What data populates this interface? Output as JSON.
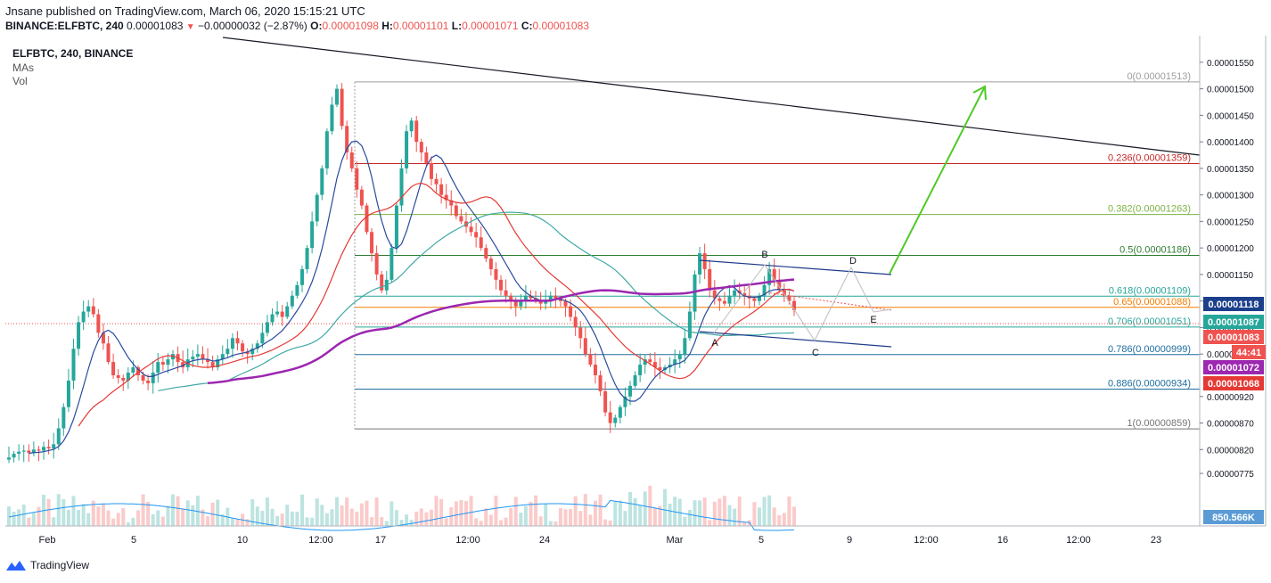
{
  "header": {
    "published": "Jnsane published on TradingView.com, March 06, 2020 15:15:21 UTC",
    "symbol_line": "BINANCE:ELFBTC, 240",
    "last": "0.00001083",
    "change": "−0.00000032 (−2.87%)",
    "o_label": "O:",
    "o": "0.00001098",
    "h_label": "H:",
    "h": "0.00001101",
    "l_label": "L:",
    "l": "0.00001071",
    "c_label": "C:",
    "c": "0.00001083"
  },
  "legend": {
    "symbol": "ELFBTC, 240, BINANCE",
    "mas": "MAs",
    "vol": "Vol"
  },
  "footer": {
    "brand": "TradingView"
  },
  "colors": {
    "up": "#26a69a",
    "down": "#ef5350",
    "ma_fast": "#2a4a9e",
    "ma_mid": "#e53935",
    "ma_slow": "#3fa9a5",
    "ma_long": "#9c27b0",
    "arrow": "#4fc928"
  },
  "chart_data": {
    "type": "candlestick",
    "y_axis": {
      "ticks": [
        "0.00001550",
        "0.00001500",
        "0.00001450",
        "0.00001400",
        "0.00001350",
        "0.00001300",
        "0.00001250",
        "0.00001200",
        "0.00001150",
        "0.00001100",
        "0.00001050",
        "0.00001000",
        "0.00000920",
        "0.00000870",
        "0.00000820",
        "0.00000775"
      ],
      "tick_values": [
        1550,
        1500,
        1450,
        1400,
        1350,
        1300,
        1250,
        1200,
        1150,
        1100,
        1050,
        1000,
        920,
        870,
        820,
        775
      ],
      "scale_note": "prices in satoshi x1e-8",
      "range": [
        760,
        1580
      ]
    },
    "x_axis": {
      "ticks": [
        "Feb",
        "5",
        "10",
        "12:00",
        "17",
        "12:00",
        "24",
        "Mar",
        "5",
        "9",
        "12:00",
        "16",
        "12:00",
        "23"
      ]
    },
    "fibonacci": [
      {
        "label": "0(0.00001513)",
        "value": 1513,
        "color": "#9e9e9e"
      },
      {
        "label": "0.236(0.00001359)",
        "value": 1359,
        "color": "#c62828"
      },
      {
        "label": "0.382(0.00001263)",
        "value": 1263,
        "color": "#7cb342"
      },
      {
        "label": "0.5(0.00001186)",
        "value": 1186,
        "color": "#2e7d32"
      },
      {
        "label": "0.618(0.00001109)",
        "value": 1109,
        "color": "#26a69a"
      },
      {
        "label": "0.65(0.00001088)",
        "value": 1088,
        "color": "#f57c00"
      },
      {
        "label": "0.706(0.00001051)",
        "value": 1051,
        "color": "#26a69a"
      },
      {
        "label": "0.786(0.00000999)",
        "value": 999,
        "color": "#1e6e9e"
      },
      {
        "label": "0.886(0.00000934)",
        "value": 934,
        "color": "#1e6e9e"
      },
      {
        "label": "1(0.00000859)",
        "value": 859,
        "color": "#757575"
      }
    ],
    "price_labels": [
      {
        "text": "0.00001118",
        "bg": "#1b3f8b"
      },
      {
        "text": "0.00001087",
        "bg": "#26a69a"
      },
      {
        "text": "0.00001083",
        "bg": "#ef5350"
      },
      {
        "text": "44:41",
        "bg": "#ef5350"
      },
      {
        "text": "0.00001072",
        "bg": "#9c27b0"
      },
      {
        "text": "0.00001068",
        "bg": "#e53935"
      },
      {
        "text": "850.566K",
        "bg": "#5b9bd5"
      }
    ],
    "pattern_labels": [
      "A",
      "B",
      "C",
      "D",
      "E"
    ],
    "closes": [
      805,
      812,
      816,
      818,
      814,
      820,
      818,
      825,
      822,
      830,
      860,
      900,
      950,
      1010,
      1060,
      1080,
      1090,
      1075,
      1040,
      1020,
      985,
      960,
      955,
      950,
      965,
      975,
      960,
      950,
      945,
      965,
      985,
      980,
      990,
      1000,
      985,
      975,
      990,
      995,
      1000,
      990,
      985,
      975,
      990,
      1000,
      1010,
      1030,
      1020,
      1005,
      1000,
      1010,
      1020,
      1040,
      1060,
      1075,
      1080,
      1070,
      1090,
      1110,
      1130,
      1160,
      1200,
      1250,
      1300,
      1350,
      1420,
      1470,
      1500,
      1430,
      1380,
      1350,
      1310,
      1280,
      1230,
      1190,
      1150,
      1120,
      1140,
      1200,
      1280,
      1350,
      1420,
      1440,
      1400,
      1380,
      1360,
      1330,
      1320,
      1300,
      1290,
      1280,
      1260,
      1250,
      1240,
      1230,
      1220,
      1200,
      1180,
      1160,
      1140,
      1120,
      1110,
      1100,
      1090,
      1100,
      1110,
      1105,
      1100,
      1095,
      1100,
      1110,
      1105,
      1100,
      1090,
      1070,
      1050,
      1030,
      1000,
      980,
      960,
      930,
      890,
      870,
      880,
      900,
      920,
      940,
      960,
      980,
      990,
      985,
      975,
      970,
      975,
      980,
      990,
      1000,
      1030,
      1080,
      1150,
      1190,
      1160,
      1120,
      1105,
      1100,
      1095,
      1110,
      1120,
      1115,
      1110,
      1105,
      1100,
      1110,
      1130,
      1160,
      1140,
      1120,
      1110,
      1100,
      1083
    ]
  }
}
